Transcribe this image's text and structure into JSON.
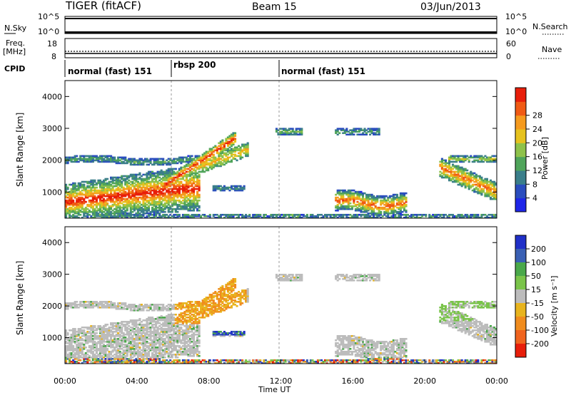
{
  "header": {
    "title": "TIGER (fitACF)",
    "beam": "Beam 15",
    "date": "03/Jun/2013"
  },
  "strips": {
    "nsky_label": "N.Sky",
    "nsky_ticks": [
      "10^5",
      "10^0"
    ],
    "nsearch_label": "N.Search",
    "freq_label": "Freq.",
    "freq_unit": "[MHz]",
    "freq_ticks": [
      "18",
      "8"
    ],
    "nave_label": "Nave",
    "nave_ticks": [
      "60",
      "0"
    ],
    "cpid_label": "CPID",
    "cpid_segments": [
      {
        "label": "normal (fast) 151",
        "start_h": 0,
        "end_h": 6
      },
      {
        "label": "rbsp 200",
        "start_h": 6,
        "end_h": 12
      },
      {
        "label": "normal (fast) 151",
        "start_h": 12,
        "end_h": 24
      }
    ]
  },
  "chart_data": [
    {
      "type": "heatmap",
      "title": "Power",
      "ylabel": "Slant Range [km]",
      "xlabel": "Time UT",
      "xlim": [
        0,
        24
      ],
      "ylim": [
        180,
        4500
      ],
      "yticks": [
        "1000",
        "2000",
        "3000",
        "4000"
      ],
      "colorbar_label": "Power [dB]",
      "colorbar_ticks": [
        "4",
        "8",
        "12",
        "16",
        "20",
        "24",
        "28"
      ],
      "colorbar_range": [
        0,
        30
      ],
      "colors": [
        "#1e26e8",
        "#2a4dbe",
        "#3a7e8a",
        "#4fa45a",
        "#8ec24a",
        "#e6c21e",
        "#f59a1e",
        "#f05a14",
        "#e81e0a"
      ]
    },
    {
      "type": "heatmap",
      "title": "Velocity",
      "ylabel": "Slant Range [km]",
      "xlabel": "Time UT",
      "xlim": [
        0,
        24
      ],
      "ylim": [
        180,
        4500
      ],
      "yticks": [
        "1000",
        "2000",
        "3000",
        "4000"
      ],
      "xticks": [
        "00:00",
        "04:00",
        "08:00",
        "12:00",
        "16:00",
        "20:00",
        "00:00"
      ],
      "colorbar_label": "Velocity [m s⁻¹]",
      "colorbar_ticks": [
        "200",
        "100",
        "50",
        "15",
        "-15",
        "-50",
        "-100",
        "-200"
      ],
      "colors": [
        "#2030c8",
        "#3a60b4",
        "#4aa84a",
        "#7ac44a",
        "#bcbcbc",
        "#e8b41e",
        "#f08c1e",
        "#f0641e",
        "#e81e0a"
      ]
    }
  ]
}
